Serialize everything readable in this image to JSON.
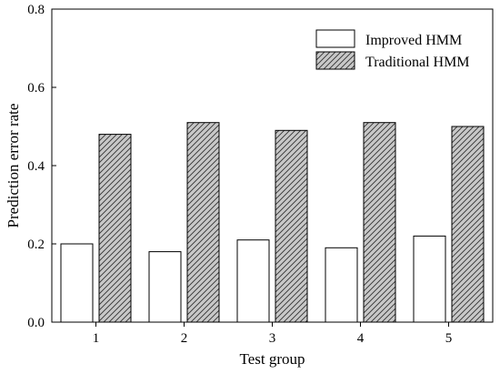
{
  "chart_data": {
    "type": "bar",
    "xlabel": "Test group",
    "ylabel": "Prediction error rate",
    "categories": [
      "1",
      "2",
      "3",
      "4",
      "5"
    ],
    "yticks": [
      "0.0",
      "0.2",
      "0.4",
      "0.6",
      "0.8"
    ],
    "ylim": [
      0,
      0.8
    ],
    "grid": false,
    "legend_position": "top-right",
    "series": [
      {
        "name": "Improved HMM",
        "values": [
          0.2,
          0.18,
          0.21,
          0.19,
          0.22
        ],
        "fill": "#ffffff",
        "pattern": "none"
      },
      {
        "name": "Traditional HMM",
        "values": [
          0.48,
          0.51,
          0.49,
          0.51,
          0.5
        ],
        "fill": "#c8c8c8",
        "pattern": "diagonal-hatch"
      }
    ]
  }
}
